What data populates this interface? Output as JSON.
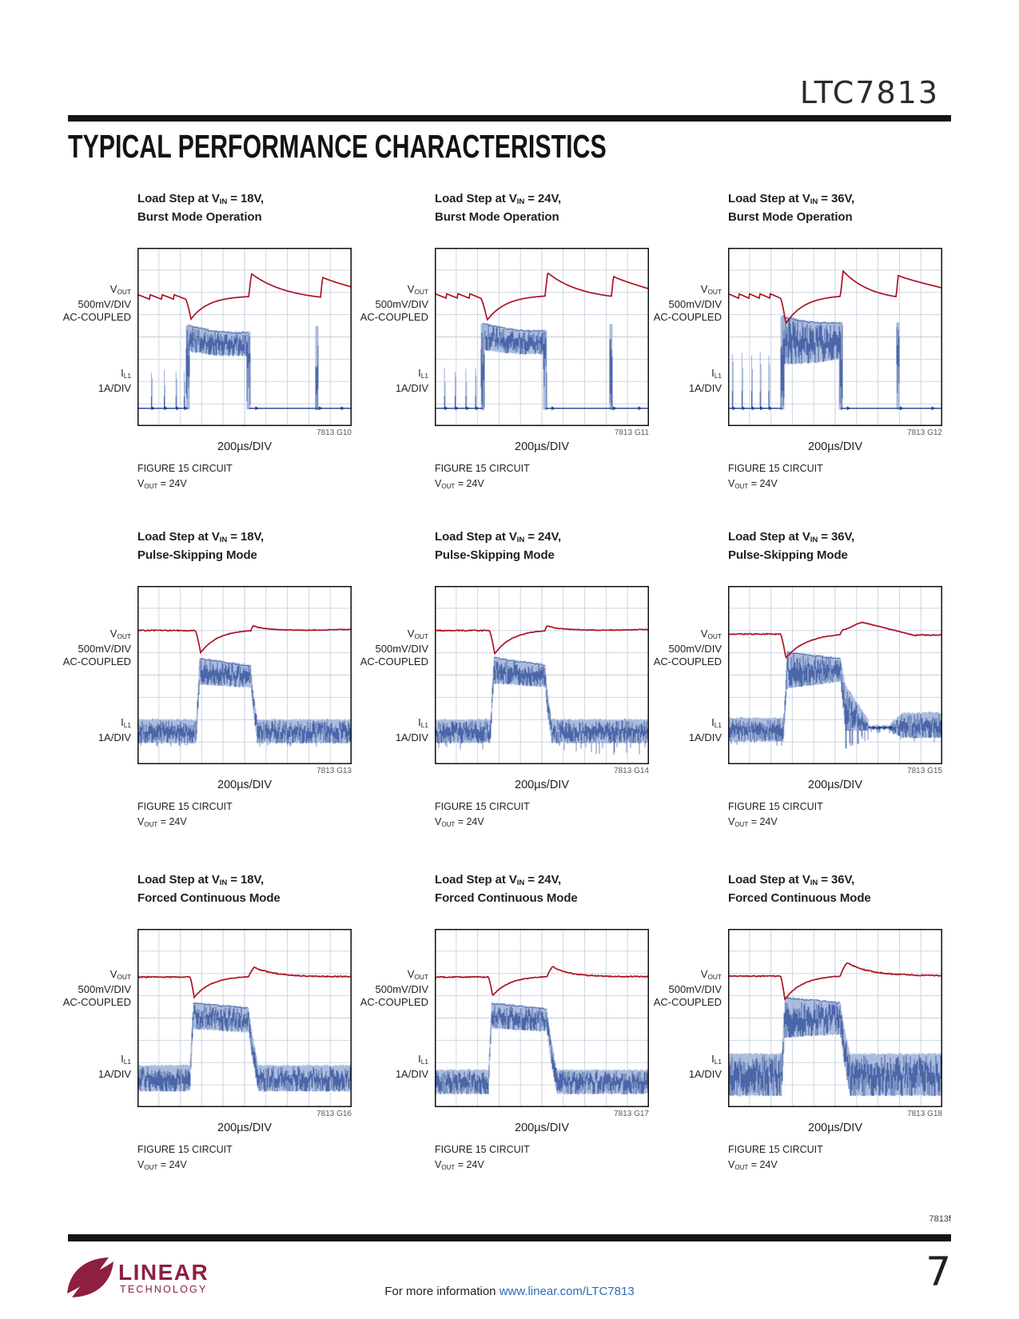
{
  "page": {
    "part_number": "LTC7813",
    "section_title": "TYPICAL PERFORMANCE CHARACTERISTICS",
    "footer": {
      "doc_code": "7813f",
      "info_prefix": "For more information ",
      "info_link": "www.linear.com/LTC7813",
      "page_number": "7",
      "logo_line1": "LINEAR",
      "logo_line2": "TECHNOLOGY"
    }
  },
  "plot_labels": {
    "vout_main": "V",
    "vout_sub": "OUT",
    "vout_div": "500mV/DIV",
    "vout_coupling": "AC-COUPLED",
    "il_main": "I",
    "il_sub": "L1",
    "il_div": "1A/DIV",
    "xlabel": "200µs/DIV",
    "fig_caption": "FIGURE 15 CIRCUIT",
    "vout_eq_main": "V",
    "vout_eq_sub": "OUT",
    "vout_eq_rest": " = 24V"
  },
  "colors": {
    "vout_trace": "#ad1324",
    "il_trace": "#39589f",
    "il_fuzz": "#97abd6",
    "grid": "#cdd5e2",
    "border": "#101010",
    "logo": "#8e1f3f",
    "link": "#2d6cb4"
  },
  "plots": [
    {
      "id": "7813 G10",
      "title_line1_pre": "Load Step at V",
      "title_line1_sub": "IN",
      "title_line1_post": " = 18V,",
      "title_line2": "Burst Mode Operation",
      "wave": {
        "m": "burst",
        "rb": 0.275,
        "teeth": 4,
        "sx": 0.225,
        "dmin": 0.4,
        "dmx": 0.25,
        "rcx": 0.43,
        "rlx": 0.52,
        "rp": 0.145,
        "dy": 0.3,
        "dxx": 0.845,
        "s2x": 0.855,
        "s2p": 0.165,
        "ey": 0.22,
        "ib": 0.9,
        "sp": [
          0.065,
          0.125,
          0.18,
          0.218
        ],
        "st": 0.68,
        "b0": 0.235,
        "b1": 0.52,
        "t0": 0.435,
        "t1": 0.475,
        "bo0": 0.575,
        "bo1": 0.6,
        "psx": 0.835,
        "pst": 0.44
      }
    },
    {
      "id": "7813 G11",
      "title_line1_pre": "Load Step at V",
      "title_line1_sub": "IN",
      "title_line1_post": " = 24V,",
      "title_line2": "Burst Mode Operation",
      "wave": {
        "m": "burst",
        "rb": 0.27,
        "teeth": 4,
        "sx": 0.215,
        "dmin": 0.405,
        "dmx": 0.245,
        "rcx": 0.44,
        "rlx": 0.515,
        "rp": 0.14,
        "dy": 0.295,
        "dxx": 0.815,
        "s2x": 0.825,
        "s2p": 0.16,
        "ey": 0.23,
        "ib": 0.9,
        "sp": [
          0.045,
          0.095,
          0.145,
          0.19
        ],
        "st": 0.67,
        "b0": 0.225,
        "b1": 0.515,
        "t0": 0.425,
        "t1": 0.465,
        "bo0": 0.565,
        "bo1": 0.59,
        "psx": 0.82,
        "pst": 0.43
      }
    },
    {
      "id": "7813 G12",
      "title_line1_pre": "Load Step at V",
      "title_line1_sub": "IN",
      "title_line1_post": " = 36V,",
      "title_line2": "Burst Mode Operation",
      "wave": {
        "m": "burst",
        "rb": 0.27,
        "teeth": 5,
        "sx": 0.245,
        "dmin": 0.425,
        "dmx": 0.27,
        "rcx": 0.46,
        "rlx": 0.525,
        "rp": 0.13,
        "dy": 0.3,
        "dxx": 0.775,
        "s2x": 0.785,
        "s2p": 0.155,
        "ey": 0.225,
        "ib": 0.9,
        "sp": [
          0.02,
          0.065,
          0.11,
          0.15,
          0.19
        ],
        "st": 0.58,
        "b0": 0.255,
        "b1": 0.525,
        "t0": 0.385,
        "t1": 0.42,
        "bo0": 0.645,
        "bo1": 0.615,
        "psx": 0.79,
        "pst": 0.42
      }
    },
    {
      "id": "7813 G13",
      "title_line1_pre": "Load Step at V",
      "title_line1_sub": "IN",
      "title_line1_post": " = 18V,",
      "title_line2": "Pulse-Skipping Mode",
      "wave": {
        "m": "skip",
        "rb": 0.25,
        "sx": 0.27,
        "dmin": 0.375,
        "dmx": 0.295,
        "rcx": 0.47,
        "rlx": 0.53,
        "rsy": 0.225,
        "sty": 0.245,
        "lt": 0.755,
        "lb": 0.875,
        "sd": 0.92,
        "b0": 0.275,
        "b1": 0.53,
        "t0": 0.405,
        "t1": 0.45,
        "bo0": 0.545,
        "bo1": 0.565,
        "post": "same"
      }
    },
    {
      "id": "7813 G14",
      "title_line1_pre": "Load Step at V",
      "title_line1_sub": "IN",
      "title_line1_post": " = 24V,",
      "title_line2": "Pulse-Skipping Mode",
      "wave": {
        "m": "skip",
        "rb": 0.25,
        "sx": 0.255,
        "dmin": 0.38,
        "dmx": 0.28,
        "rcx": 0.46,
        "rlx": 0.515,
        "rsy": 0.225,
        "sty": 0.245,
        "lt": 0.755,
        "lb": 0.875,
        "sd": 0.95,
        "b0": 0.26,
        "b1": 0.515,
        "t0": 0.4,
        "t1": 0.445,
        "bo0": 0.54,
        "bo1": 0.56,
        "post": "spiky"
      }
    },
    {
      "id": "7813 G15",
      "title_line1_pre": "Load Step at V",
      "title_line1_sub": "IN",
      "title_line1_post": " = 36V,",
      "title_line2": "Pulse-Skipping Mode",
      "wave": {
        "m": "skip",
        "rb": 0.27,
        "sx": 0.245,
        "dmin": 0.405,
        "dmx": 0.27,
        "rcx": 0.48,
        "rlx": 0.525,
        "hy": 0.205,
        "hx": 0.63,
        "hdx": 0.88,
        "ey": 0.275,
        "lt": 0.745,
        "lb": 0.865,
        "sd": 0.93,
        "b0": 0.26,
        "b1": 0.525,
        "t0": 0.37,
        "t1": 0.41,
        "bo0": 0.57,
        "bo1": 0.53,
        "post": "decay",
        "dex": 0.655,
        "qex": 0.755,
        "rst": 0.715,
        "rsb": 0.845
      }
    },
    {
      "id": "7813 G16",
      "title_line1_pre": "Load Step at V",
      "title_line1_sub": "IN",
      "title_line1_post": " = 18V,",
      "title_line2": "Forced Continuous Mode",
      "wave": {
        "m": "fcm",
        "rb": 0.27,
        "sx": 0.245,
        "dmin": 0.385,
        "dmx": 0.265,
        "rcx": 0.44,
        "rlx": 0.52,
        "op": 0.215,
        "opx": 0.545,
        "oex": 0.78,
        "lt": 0.77,
        "lb": 0.905,
        "b0": 0.245,
        "b1": 0.52,
        "t0": 0.415,
        "t1": 0.445,
        "bo0": 0.555,
        "bo1": 0.575
      }
    },
    {
      "id": "7813 G17",
      "title_line1_pre": "Load Step at V",
      "title_line1_sub": "IN",
      "title_line1_post": " = 24V,",
      "title_line2": "Forced Continuous Mode",
      "wave": {
        "m": "fcm",
        "rb": 0.27,
        "sx": 0.25,
        "dmin": 0.375,
        "dmx": 0.27,
        "rcx": 0.44,
        "rlx": 0.525,
        "op": 0.21,
        "opx": 0.55,
        "oex": 0.75,
        "lt": 0.795,
        "lb": 0.92,
        "b0": 0.25,
        "b1": 0.525,
        "t0": 0.415,
        "t1": 0.45,
        "bo0": 0.55,
        "bo1": 0.57
      }
    },
    {
      "id": "7813 G18",
      "title_line1_pre": "Load Step at V",
      "title_line1_sub": "IN",
      "title_line1_post": " = 36V,",
      "title_line2": "Forced Continuous Mode",
      "wave": {
        "m": "fcm",
        "rb": 0.265,
        "sx": 0.245,
        "dmin": 0.395,
        "dmx": 0.265,
        "rcx": 0.45,
        "rlx": 0.525,
        "op": 0.19,
        "opx": 0.555,
        "oex": 0.82,
        "lt": 0.705,
        "lb": 0.93,
        "b0": 0.25,
        "b1": 0.525,
        "t0": 0.385,
        "t1": 0.415,
        "bo0": 0.605,
        "bo1": 0.585
      }
    }
  ]
}
